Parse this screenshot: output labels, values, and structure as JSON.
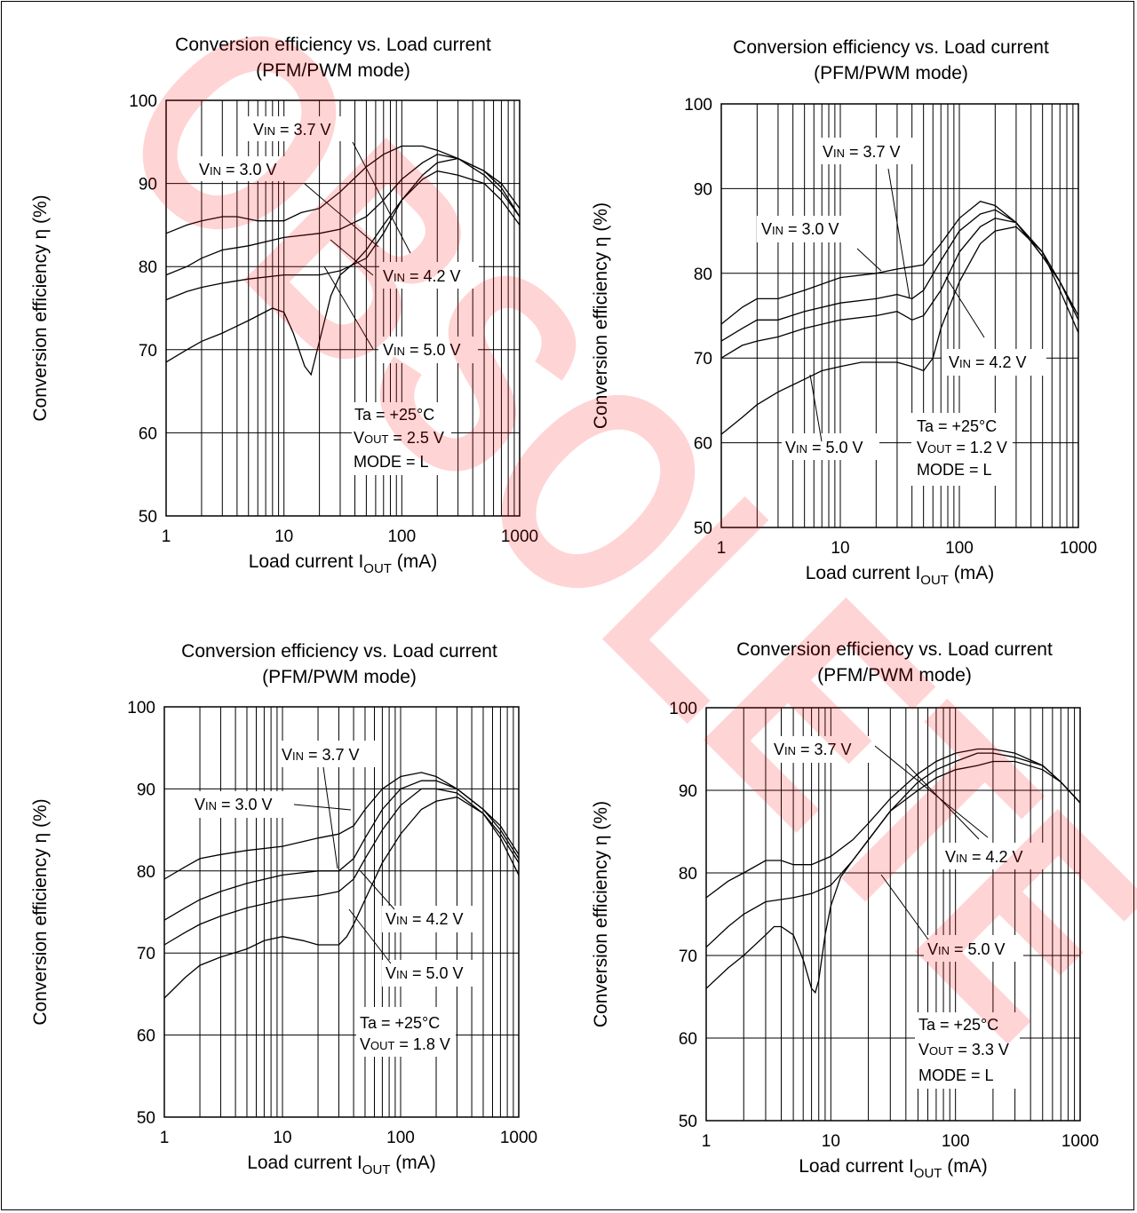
{
  "watermark": {
    "text": "OBSOLETE",
    "color": "#ff0000"
  },
  "chart_data": [
    {
      "type": "line",
      "title": "Conversion efficiency vs. Load current",
      "subtitle": "(PFM/PWM mode)",
      "xlabel": "Load current I_OUT (mA)",
      "ylabel": "Conversion efficiency η (%)",
      "xscale": "log",
      "xlim": [
        1,
        1000
      ],
      "ylim": [
        50,
        100
      ],
      "xticks": [
        "1",
        "10",
        "100",
        "1000"
      ],
      "yticks": [
        "50",
        "60",
        "70",
        "80",
        "90",
        "100"
      ],
      "grid": true,
      "annotations": [
        "VIN = 3.0 V",
        "VIN = 3.7 V",
        "VIN = 4.2 V",
        "VIN = 5.0 V",
        "Ta = +25°C",
        "VOUT = 2.5 V",
        "MODE = L"
      ],
      "series": [
        {
          "name": "VIN = 3.0 V",
          "x": [
            1,
            1.5,
            2,
            3,
            4,
            6,
            10,
            14,
            20,
            30,
            50,
            70,
            100,
            150,
            200,
            300,
            500,
            700,
            1000
          ],
          "y": [
            84,
            85,
            85.5,
            86,
            86,
            85.5,
            85.5,
            86.5,
            87,
            89,
            92,
            93.5,
            94.5,
            94.5,
            94,
            93,
            91,
            89,
            86
          ]
        },
        {
          "name": "VIN = 3.7 V",
          "x": [
            1,
            1.5,
            2,
            3,
            5,
            10,
            20,
            30,
            50,
            70,
            100,
            150,
            200,
            300,
            500,
            700,
            1000
          ],
          "y": [
            79,
            80,
            81,
            82,
            82.5,
            83.5,
            84,
            84.5,
            86,
            88,
            90.5,
            92.5,
            93.5,
            93,
            91.5,
            90,
            87
          ]
        },
        {
          "name": "VIN = 4.2 V",
          "x": [
            1,
            1.5,
            2,
            3,
            5,
            10,
            20,
            30,
            50,
            70,
            100,
            150,
            200,
            300,
            500,
            700,
            1000
          ],
          "y": [
            76,
            77,
            77.5,
            78,
            78.5,
            79,
            79,
            79.5,
            81,
            84,
            88,
            91,
            92.5,
            93,
            91.5,
            89.5,
            86
          ]
        },
        {
          "name": "VIN = 5.0 V",
          "x": [
            1,
            1.5,
            2,
            3,
            5,
            8,
            10,
            12,
            15,
            17,
            20,
            25,
            30,
            40,
            50,
            70,
            100,
            150,
            200,
            300,
            500,
            700,
            1000
          ],
          "y": [
            68.5,
            70,
            71,
            72,
            73.5,
            75,
            74.5,
            72,
            68,
            67,
            71,
            76.5,
            79,
            80.5,
            82,
            85,
            88,
            90.5,
            91.5,
            91,
            90,
            88,
            85
          ]
        }
      ]
    },
    {
      "type": "line",
      "title": "Conversion efficiency vs. Load current",
      "subtitle": "(PFM/PWM mode)",
      "xlabel": "Load current I_OUT (mA)",
      "ylabel": "Conversion efficiency η (%)",
      "xscale": "log",
      "xlim": [
        1,
        1000
      ],
      "ylim": [
        50,
        100
      ],
      "xticks": [
        "1",
        "10",
        "100",
        "1000"
      ],
      "yticks": [
        "50",
        "60",
        "70",
        "80",
        "90",
        "100"
      ],
      "grid": true,
      "annotations": [
        "VIN = 3.7 V",
        "VIN = 3.0 V",
        "VIN = 4.2 V",
        "VIN = 5.0 V",
        "Ta = +25°C",
        "VOUT = 1.2 V",
        "MODE = L"
      ],
      "series": [
        {
          "name": "VIN = 3.0 V",
          "x": [
            1,
            1.5,
            2,
            3,
            5,
            10,
            20,
            30,
            50,
            70,
            100,
            150,
            200,
            300,
            500,
            700,
            1000
          ],
          "y": [
            74,
            76,
            77,
            77,
            78,
            79.5,
            80,
            80.5,
            81,
            83.5,
            86.5,
            88.5,
            88,
            86,
            82,
            79,
            75
          ]
        },
        {
          "name": "VIN = 3.7 V",
          "x": [
            1,
            1.5,
            2,
            3,
            5,
            10,
            20,
            30,
            40,
            50,
            70,
            100,
            150,
            200,
            300,
            500,
            700,
            1000
          ],
          "y": [
            72,
            73.5,
            74.5,
            74.5,
            75.5,
            76.5,
            77,
            77.5,
            77,
            78,
            81.5,
            85,
            87,
            87.5,
            86,
            82,
            79,
            75
          ]
        },
        {
          "name": "VIN = 4.2 V",
          "x": [
            1,
            1.5,
            2,
            3,
            5,
            10,
            20,
            30,
            40,
            50,
            70,
            100,
            150,
            200,
            300,
            500,
            700,
            1000
          ],
          "y": [
            70,
            71.5,
            72,
            72.5,
            73.5,
            74.5,
            75,
            75.5,
            74.5,
            75,
            78,
            82.5,
            85.5,
            86.5,
            86,
            82.5,
            79,
            74.5
          ]
        },
        {
          "name": "VIN = 5.0 V",
          "x": [
            1,
            1.5,
            2,
            3,
            5,
            7,
            10,
            15,
            20,
            30,
            40,
            50,
            60,
            70,
            100,
            150,
            200,
            300,
            500,
            700,
            1000
          ],
          "y": [
            61,
            63,
            64.5,
            66,
            67.5,
            68.5,
            69,
            69.5,
            69.5,
            69.5,
            69,
            68.5,
            70,
            73.5,
            79,
            83.5,
            85,
            85.5,
            82.5,
            78,
            73
          ]
        }
      ]
    },
    {
      "type": "line",
      "title": "Conversion efficiency vs. Load current",
      "subtitle": "(PFM/PWM mode)",
      "xlabel": "Load current I_OUT (mA)",
      "ylabel": "Conversion efficiency η (%)",
      "xscale": "log",
      "xlim": [
        1,
        1000
      ],
      "ylim": [
        50,
        100
      ],
      "xticks": [
        "1",
        "10",
        "100",
        "1000"
      ],
      "yticks": [
        "50",
        "60",
        "70",
        "80",
        "90",
        "100"
      ],
      "grid": true,
      "annotations": [
        "VIN = 3.7 V",
        "VIN = 3.0 V",
        "VIN = 4.2 V",
        "VIN = 5.0 V",
        "Ta = +25°C",
        "VOUT = 1.8 V"
      ],
      "series": [
        {
          "name": "VIN = 3.0 V",
          "x": [
            1,
            1.5,
            2,
            3,
            5,
            10,
            20,
            30,
            40,
            50,
            70,
            100,
            150,
            200,
            300,
            500,
            700,
            1000
          ],
          "y": [
            79,
            80.5,
            81.5,
            82,
            82.5,
            83,
            84,
            84.5,
            85.5,
            87.5,
            90,
            91.5,
            92,
            91.5,
            90,
            87.5,
            85.5,
            82
          ]
        },
        {
          "name": "VIN = 3.7 V",
          "x": [
            1,
            1.5,
            2,
            3,
            5,
            10,
            20,
            30,
            40,
            50,
            70,
            100,
            150,
            200,
            300,
            500,
            700,
            1000
          ],
          "y": [
            74,
            75.5,
            76.5,
            77.5,
            78.5,
            79.5,
            80,
            80,
            81.5,
            84,
            87.5,
            90,
            91,
            91,
            90,
            87.5,
            85,
            81.5
          ]
        },
        {
          "name": "VIN = 4.2 V",
          "x": [
            1,
            1.5,
            2,
            3,
            5,
            10,
            20,
            30,
            40,
            50,
            70,
            100,
            150,
            200,
            300,
            500,
            700,
            1000
          ],
          "y": [
            71,
            72.5,
            73.5,
            74.5,
            75.5,
            76.5,
            77,
            77.5,
            79,
            81.5,
            85,
            88,
            90,
            90,
            89.5,
            87,
            84.5,
            81
          ]
        },
        {
          "name": "VIN = 5.0 V",
          "x": [
            1,
            1.5,
            2,
            3,
            5,
            7,
            10,
            15,
            20,
            30,
            35,
            40,
            50,
            70,
            100,
            150,
            200,
            300,
            500,
            700,
            1000
          ],
          "y": [
            64.5,
            67,
            68.5,
            69.5,
            70.5,
            71.5,
            72,
            71.5,
            71,
            71,
            72,
            73.5,
            76.5,
            81,
            84.5,
            87.5,
            88.5,
            89,
            87,
            84,
            79.5
          ]
        }
      ]
    },
    {
      "type": "line",
      "title": "Conversion efficiency vs. Load current",
      "subtitle": "(PFM/PWM mode)",
      "xlabel": "Load current I_OUT (mA)",
      "ylabel": "Conversion efficiency η (%)",
      "xscale": "log",
      "xlim": [
        1,
        1000
      ],
      "ylim": [
        50,
        100
      ],
      "xticks": [
        "1",
        "10",
        "100",
        "1000"
      ],
      "yticks": [
        "50",
        "60",
        "70",
        "80",
        "90",
        "100"
      ],
      "grid": true,
      "annotations": [
        "VIN = 3.7 V",
        "VIN = 4.2 V",
        "VIN = 5.0 V",
        "Ta = +25°C",
        "VOUT = 3.3 V",
        "MODE = L"
      ],
      "series": [
        {
          "name": "VIN = 3.7 V",
          "x": [
            1,
            1.5,
            2,
            3,
            4,
            5,
            7,
            10,
            15,
            20,
            30,
            50,
            70,
            100,
            150,
            200,
            300,
            500,
            700,
            1000
          ],
          "y": [
            77,
            79,
            80,
            81.5,
            81.5,
            81,
            81,
            82,
            84,
            86,
            89,
            92,
            93.5,
            94.5,
            95,
            95,
            94.5,
            93,
            91,
            88.5
          ]
        },
        {
          "name": "VIN = 4.2 V",
          "x": [
            1,
            1.5,
            2,
            3,
            5,
            7,
            10,
            15,
            20,
            30,
            50,
            70,
            100,
            150,
            200,
            300,
            500,
            700,
            1000
          ],
          "y": [
            71,
            73.5,
            75,
            76.5,
            77,
            77.5,
            78.5,
            81.5,
            84,
            87.5,
            91,
            92.5,
            93.5,
            94.5,
            94.5,
            94,
            93,
            91,
            88.5
          ]
        },
        {
          "name": "VIN = 5.0 V",
          "x": [
            1,
            1.5,
            2,
            3,
            3.5,
            4,
            5,
            6,
            7,
            7.5,
            8,
            9,
            10,
            12,
            15,
            20,
            30,
            50,
            70,
            100,
            150,
            200,
            300,
            500,
            700,
            1000
          ],
          "y": [
            66,
            68.5,
            70,
            72.5,
            73.5,
            73.5,
            72.5,
            69.5,
            66,
            65.5,
            67,
            72.5,
            76,
            79.5,
            81.5,
            84,
            87.5,
            90,
            91.5,
            92.5,
            93,
            93.5,
            93.5,
            92.5,
            91,
            88.5
          ]
        }
      ]
    }
  ]
}
